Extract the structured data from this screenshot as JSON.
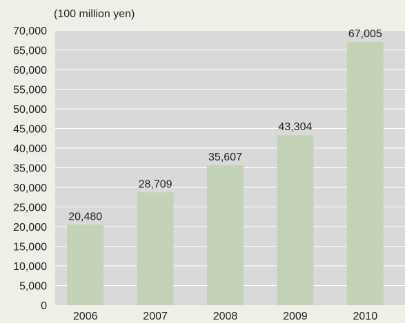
{
  "chart_data": {
    "type": "bar",
    "unit_label": "(100 million yen)",
    "categories": [
      "2006",
      "2007",
      "2008",
      "2009",
      "2010"
    ],
    "values": [
      20480,
      28709,
      35607,
      43304,
      67005
    ],
    "value_labels": [
      "20,480",
      "28,709",
      "35,607",
      "43,304",
      "67,005"
    ],
    "yticks": [
      0,
      5000,
      10000,
      15000,
      20000,
      25000,
      30000,
      35000,
      40000,
      45000,
      50000,
      55000,
      60000,
      65000,
      70000
    ],
    "ytick_labels": [
      "0",
      "5,000",
      "10,000",
      "15,000",
      "20,000",
      "25,000",
      "30,000",
      "35,000",
      "40,000",
      "45,000",
      "50,000",
      "55,000",
      "60,000",
      "65,000",
      "70,000"
    ],
    "ylim": [
      0,
      70000
    ],
    "grid": true,
    "colors": {
      "background": "#eef0e8",
      "plot_background": "#d9d9d9",
      "grid": "#ffffff",
      "bar": "#c4d3b7",
      "text": "#1f1f1f"
    }
  }
}
